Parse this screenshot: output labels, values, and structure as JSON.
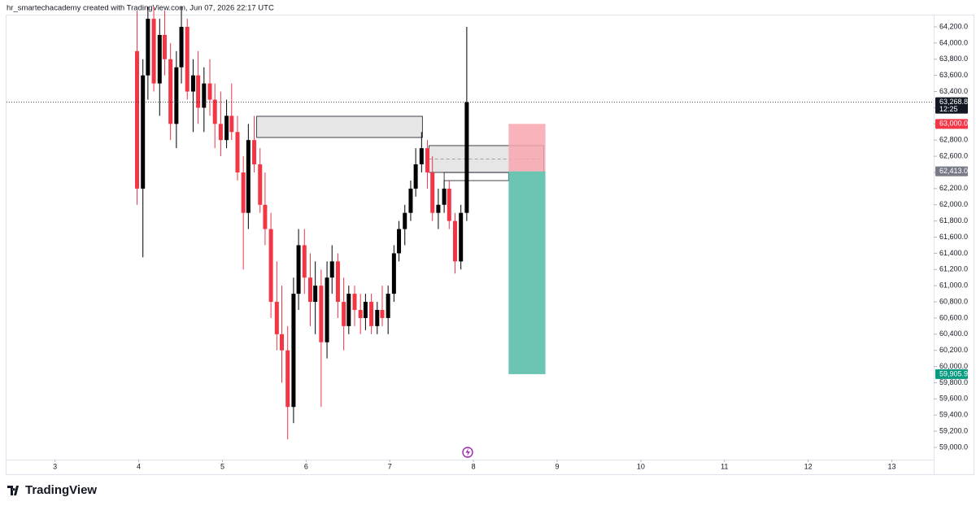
{
  "header": "hr_smartechacademy created with TradingView.com, Jun 07, 2026 22:17 UTC",
  "logo": "TradingView",
  "chart_data": {
    "type": "candlestick",
    "up_color": "#000000",
    "down_color": "#f23645",
    "x": [
      3.98,
      4.05,
      4.11,
      4.18,
      4.25,
      4.31,
      4.38,
      4.45,
      4.51,
      4.58,
      4.65,
      4.71,
      4.78,
      4.85,
      4.91,
      4.98,
      5.05,
      5.11,
      5.18,
      5.25,
      5.31,
      5.38,
      5.45,
      5.51,
      5.58,
      5.65,
      5.71,
      5.78,
      5.85,
      5.91,
      5.98,
      6.05,
      6.11,
      6.18,
      6.25,
      6.31,
      6.38,
      6.45,
      6.51,
      6.58,
      6.65,
      6.71,
      6.78,
      6.85,
      6.91,
      6.98,
      7.05,
      7.11,
      7.18,
      7.25,
      7.31,
      7.38,
      7.45,
      7.51,
      7.58,
      7.65,
      7.71,
      7.78,
      7.85,
      7.92
    ],
    "open": [
      63900,
      62200,
      63600,
      64300,
      63500,
      64100,
      63800,
      63000,
      63700,
      64200,
      63400,
      63600,
      63200,
      63500,
      63300,
      63000,
      62800,
      63100,
      62900,
      62400,
      61900,
      62800,
      62500,
      62000,
      61700,
      60800,
      60400,
      60200,
      59500,
      60900,
      61500,
      61100,
      60800,
      61000,
      60300,
      61100,
      61300,
      60800,
      60500,
      60900,
      60700,
      60600,
      60800,
      60500,
      60700,
      60600,
      60900,
      61400,
      61700,
      61900,
      62200,
      62500,
      62700,
      62400,
      61900,
      62000,
      62200,
      61800,
      61300,
      61900
    ],
    "high": [
      64400,
      63800,
      64450,
      64450,
      64300,
      64400,
      64000,
      63900,
      64450,
      64300,
      63800,
      63900,
      63700,
      63800,
      63500,
      63400,
      63300,
      63500,
      63100,
      62600,
      63000,
      63100,
      62700,
      62400,
      61900,
      61300,
      61000,
      60500,
      61100,
      61700,
      61700,
      61400,
      61300,
      61200,
      61300,
      61500,
      61400,
      61100,
      61000,
      61000,
      60900,
      60900,
      60900,
      60800,
      61000,
      61000,
      61500,
      61800,
      62000,
      62300,
      62700,
      62900,
      62800,
      62600,
      62200,
      62300,
      62300,
      61900,
      62000,
      64200
    ],
    "low": [
      62000,
      61350,
      63300,
      63400,
      63100,
      63600,
      62800,
      62700,
      63500,
      63300,
      62900,
      63000,
      62900,
      63100,
      62700,
      62600,
      62700,
      62800,
      62300,
      61200,
      61700,
      62400,
      61900,
      61500,
      60600,
      60200,
      59800,
      59100,
      59300,
      60700,
      60900,
      60500,
      60400,
      59500,
      60100,
      60900,
      60600,
      60200,
      60400,
      60500,
      60400,
      60450,
      60400,
      60400,
      60500,
      60400,
      60800,
      61300,
      61500,
      61800,
      62100,
      62400,
      62200,
      61800,
      61700,
      61900,
      61700,
      61150,
      61200,
      61800
    ],
    "close": [
      62200,
      63600,
      64300,
      63500,
      64100,
      63800,
      63000,
      63700,
      64200,
      63400,
      63600,
      63200,
      63500,
      63300,
      63000,
      62800,
      63100,
      62900,
      62400,
      61900,
      62800,
      62500,
      62000,
      61700,
      60800,
      60400,
      60200,
      59500,
      60900,
      61500,
      61100,
      60800,
      61000,
      60300,
      61100,
      61300,
      60800,
      60500,
      60900,
      60700,
      60600,
      60800,
      60500,
      60700,
      60600,
      60900,
      61400,
      61700,
      61900,
      62200,
      62500,
      62700,
      62400,
      61900,
      62000,
      62200,
      61800,
      61300,
      61900,
      63268.8
    ],
    "xlim": [
      2.42,
      13.5
    ],
    "ylim": [
      58849,
      64351
    ],
    "xticks": [
      3,
      4,
      5,
      6,
      7,
      8,
      9,
      10,
      11,
      12,
      13
    ],
    "yticks": [
      {
        "value": 59000,
        "label": "59,000.0"
      },
      {
        "value": 59200,
        "label": "59,200.0"
      },
      {
        "value": 59400,
        "label": "59,400.0"
      },
      {
        "value": 59600,
        "label": "59,600.0"
      },
      {
        "value": 59800,
        "label": "59,800.0"
      },
      {
        "value": 60000,
        "label": "60,000.0"
      },
      {
        "value": 60200,
        "label": "60,200.0"
      },
      {
        "value": 60400,
        "label": "60,400.0"
      },
      {
        "value": 60600,
        "label": "60,600.0"
      },
      {
        "value": 60800,
        "label": "60,800.0"
      },
      {
        "value": 61000,
        "label": "61,000.0"
      },
      {
        "value": 61200,
        "label": "61,200.0"
      },
      {
        "value": 61400,
        "label": "61,400.0"
      },
      {
        "value": 61600,
        "label": "61,600.0"
      },
      {
        "value": 61800,
        "label": "61,800.0"
      },
      {
        "value": 62000,
        "label": "62,000.0"
      },
      {
        "value": 62200,
        "label": "62,200.0"
      },
      {
        "value": 62400,
        "label": "62,400.0"
      },
      {
        "value": 62600,
        "label": "62,600.0"
      },
      {
        "value": 62800,
        "label": "62,800.0"
      },
      {
        "value": 63000,
        "label": "63,000.0"
      },
      {
        "value": 63200,
        "label": "63,200.0"
      },
      {
        "value": 63400,
        "label": "63,400.0"
      },
      {
        "value": 63600,
        "label": "63,600.0"
      },
      {
        "value": 63800,
        "label": "63,800.0"
      },
      {
        "value": 64000,
        "label": "64,000.0"
      },
      {
        "value": 64200,
        "label": "64,200.0"
      }
    ],
    "zones": [
      {
        "x": [
          5.41,
          7.39
        ],
        "top": 63094,
        "bottom": 62832,
        "fill": "#e0e0e0",
        "midline": false
      },
      {
        "x": [
          7.47,
          8.84
        ],
        "top": 62732,
        "bottom": 62400,
        "fill": "#e0e0e0",
        "midline": true
      },
      {
        "x": [
          7.65,
          8.42
        ],
        "top": 62400,
        "bottom": 62299,
        "fill": "none",
        "midline": false
      }
    ],
    "position": {
      "x": [
        8.42,
        8.86
      ],
      "stop": {
        "value": 63000.0,
        "label": "63,000.0"
      },
      "entry": {
        "value": 62413.0,
        "label": "62,413.0"
      },
      "target": {
        "value": 59905.9,
        "label": "59,905.9"
      },
      "stop_color": "#f7a7ae",
      "target_color": "#6cc4b3",
      "stop_label_color": "#f23645",
      "entry_label_color": "#787b86",
      "target_label_color": "#089981"
    },
    "last_price": {
      "value": 63268.8,
      "label": "63,268.8",
      "countdown": "12:25"
    }
  }
}
